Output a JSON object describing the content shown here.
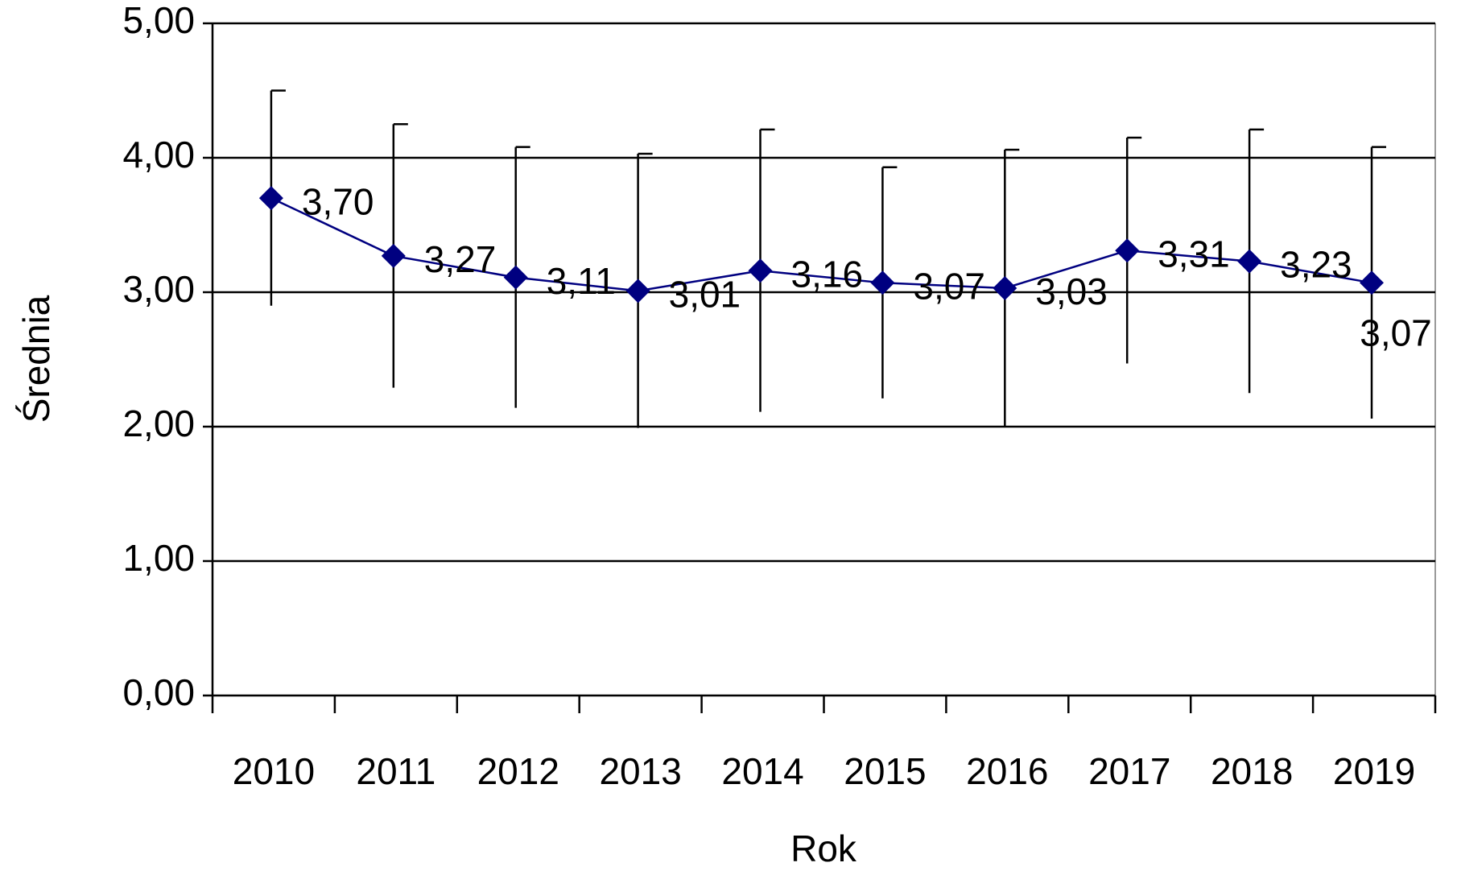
{
  "chart_data": {
    "type": "line",
    "x_label": "Rok",
    "y_label": "Średnia",
    "categories": [
      "2010",
      "2011",
      "2012",
      "2013",
      "2014",
      "2015",
      "2016",
      "2017",
      "2018",
      "2019"
    ],
    "values": [
      3.7,
      3.27,
      3.11,
      3.01,
      3.16,
      3.07,
      3.03,
      3.31,
      3.23,
      3.07
    ],
    "value_labels": [
      "3,70",
      "3,27",
      "3,11",
      "3,01",
      "3,16",
      "3,07",
      "3,03",
      "3,31",
      "3,23",
      "3,07"
    ],
    "errors": [
      0.8,
      0.98,
      0.97,
      1.02,
      1.05,
      0.86,
      1.03,
      0.84,
      0.98,
      1.01
    ],
    "color": "#000080",
    "ylim": [
      0,
      5
    ],
    "yticks": [
      {
        "value": 0,
        "label": "0,00"
      },
      {
        "value": 1,
        "label": "1,00"
      },
      {
        "value": 2,
        "label": "2,00"
      },
      {
        "value": 3,
        "label": "3,00"
      },
      {
        "value": 4,
        "label": "4,00"
      },
      {
        "value": 5,
        "label": "5,00"
      }
    ],
    "grid": true
  }
}
